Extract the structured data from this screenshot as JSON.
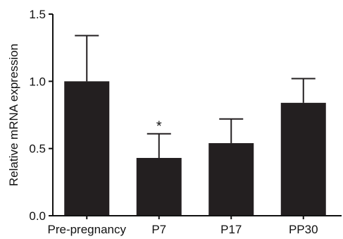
{
  "chart_data": {
    "type": "bar",
    "title": "",
    "xlabel": "",
    "ylabel": "Relative mRNA expression",
    "categories": [
      "Pre-pregnancy",
      "P7",
      "P17",
      "PP30"
    ],
    "values": [
      1.0,
      0.43,
      0.54,
      0.84
    ],
    "error_upper": [
      1.34,
      0.61,
      0.72,
      1.02
    ],
    "annotations": [
      "",
      "*",
      "",
      ""
    ],
    "ylim": [
      0,
      1.5
    ],
    "yticks": [
      0.0,
      0.5,
      1.0,
      1.5
    ],
    "ytick_labels": [
      "0.0",
      "0.5",
      "1.0",
      "1.5"
    ],
    "grid": false,
    "bar_color": "#231f20"
  }
}
